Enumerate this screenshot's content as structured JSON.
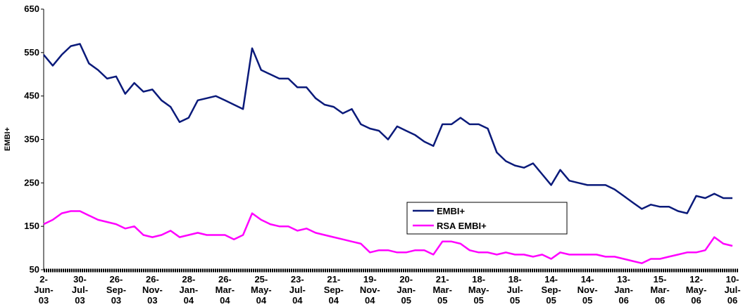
{
  "chart_data": {
    "type": "line",
    "y_label": "EMBI+",
    "categories": [
      "2-Jun-03",
      null,
      null,
      null,
      "30-Jul-03",
      null,
      null,
      null,
      "26-Sep-03",
      null,
      null,
      null,
      "26-Nov-03",
      null,
      null,
      null,
      "28-Jan-04",
      null,
      null,
      null,
      "26-Mar-04",
      null,
      null,
      null,
      "25-May-04",
      null,
      null,
      null,
      "23-Jul-04",
      null,
      null,
      null,
      "21-Sep-04",
      null,
      null,
      null,
      "19-Nov-04",
      null,
      null,
      null,
      "20-Jan-05",
      null,
      null,
      null,
      "21-Mar-05",
      null,
      null,
      null,
      "18-May-05",
      null,
      null,
      null,
      "18-Jul-05",
      null,
      null,
      null,
      "14-Sep-05",
      null,
      null,
      null,
      "14-Nov-05",
      null,
      null,
      null,
      "13-Jan-06",
      null,
      null,
      null,
      "15-Mar-06",
      null,
      null,
      null,
      "12-May-06",
      null,
      null,
      null,
      "10-Jul-06"
    ],
    "series": [
      {
        "name": "EMBI+",
        "color": "#0a1a7a",
        "values": [
          545,
          520,
          545,
          565,
          570,
          525,
          510,
          490,
          495,
          455,
          480,
          460,
          465,
          440,
          425,
          390,
          400,
          440,
          445,
          450,
          440,
          430,
          420,
          560,
          510,
          500,
          490,
          490,
          470,
          470,
          445,
          430,
          425,
          410,
          420,
          385,
          375,
          370,
          350,
          380,
          370,
          360,
          345,
          335,
          385,
          385,
          400,
          385,
          385,
          375,
          320,
          300,
          290,
          285,
          295,
          270,
          245,
          280,
          255,
          250,
          245,
          245,
          245,
          235,
          220,
          205,
          190,
          200,
          195,
          195,
          185,
          180,
          220,
          215,
          225,
          215,
          215
        ]
      },
      {
        "name": "RSA EMBI+",
        "color": "#ff00ff",
        "values": [
          155,
          165,
          180,
          185,
          185,
          175,
          165,
          160,
          155,
          145,
          150,
          130,
          125,
          130,
          140,
          125,
          130,
          135,
          130,
          130,
          130,
          120,
          130,
          180,
          165,
          155,
          150,
          150,
          140,
          145,
          135,
          130,
          125,
          120,
          115,
          110,
          90,
          95,
          95,
          90,
          90,
          95,
          95,
          85,
          115,
          115,
          110,
          95,
          90,
          90,
          85,
          90,
          85,
          85,
          80,
          85,
          75,
          90,
          85,
          85,
          85,
          85,
          80,
          80,
          75,
          70,
          65,
          75,
          75,
          80,
          85,
          90,
          90,
          95,
          125,
          110,
          105
        ]
      }
    ],
    "ylim": [
      50,
      650
    ],
    "yticks": [
      50,
      150,
      250,
      350,
      450,
      550,
      650
    ],
    "grid": false,
    "legend": "lower right"
  }
}
